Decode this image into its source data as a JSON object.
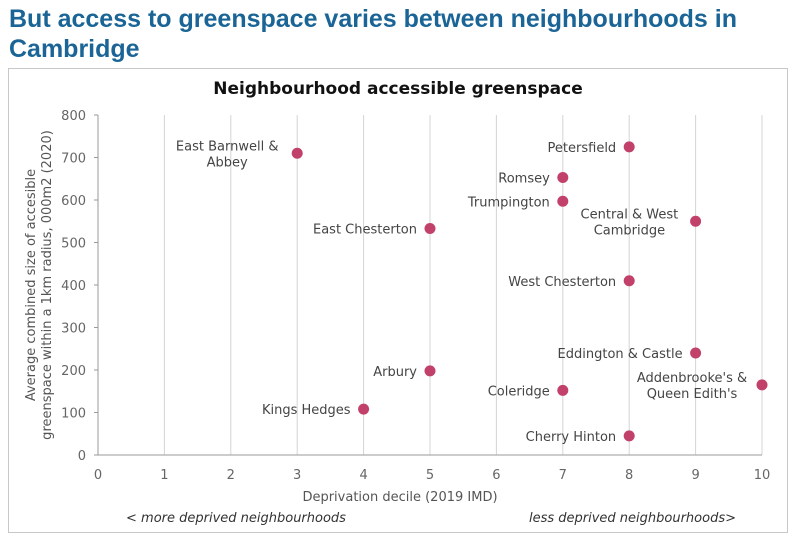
{
  "slide_title": "But access to greenspace varies between neighbourhoods in Cambridge",
  "chart_data": {
    "type": "scatter",
    "title": "Neighbourhood accessible greenspace",
    "xlabel": "Deprivation decile (2019 IMD)",
    "ylabel_lines": [
      "Average combined size of accesible",
      "greenspace within a 1km radius, 000m2 (2020)"
    ],
    "xlim": [
      0,
      10
    ],
    "ylim": [
      0,
      800
    ],
    "xticks": [
      0,
      1,
      2,
      3,
      4,
      5,
      6,
      7,
      8,
      9,
      10
    ],
    "yticks": [
      0,
      100,
      200,
      300,
      400,
      500,
      600,
      700,
      800
    ],
    "grid": "vertical",
    "marker_color": "#c2416b",
    "points": [
      {
        "label_lines": [
          "East Barnwell &",
          "Abbey"
        ],
        "x": 3,
        "y": 710
      },
      {
        "label_lines": [
          "Petersfield"
        ],
        "x": 8,
        "y": 725
      },
      {
        "label_lines": [
          "Romsey"
        ],
        "x": 7,
        "y": 653
      },
      {
        "label_lines": [
          "Trumpington"
        ],
        "x": 7,
        "y": 597
      },
      {
        "label_lines": [
          "Central & West",
          "Cambridge"
        ],
        "x": 9,
        "y": 550
      },
      {
        "label_lines": [
          "East Chesterton"
        ],
        "x": 5,
        "y": 533
      },
      {
        "label_lines": [
          "West Chesterton"
        ],
        "x": 8,
        "y": 410
      },
      {
        "label_lines": [
          "Eddington & Castle"
        ],
        "x": 9,
        "y": 240
      },
      {
        "label_lines": [
          "Arbury"
        ],
        "x": 5,
        "y": 198
      },
      {
        "label_lines": [
          "Addenbrooke's &",
          "Queen Edith's"
        ],
        "x": 10,
        "y": 165
      },
      {
        "label_lines": [
          "Coleridge"
        ],
        "x": 7,
        "y": 152
      },
      {
        "label_lines": [
          "Kings Hedges"
        ],
        "x": 4,
        "y": 108
      },
      {
        "label_lines": [
          "Cherry Hinton"
        ],
        "x": 8,
        "y": 45
      }
    ],
    "annotations": {
      "left": "< more deprived neighbourhoods",
      "right": "less deprived neighbourhoods>"
    }
  }
}
